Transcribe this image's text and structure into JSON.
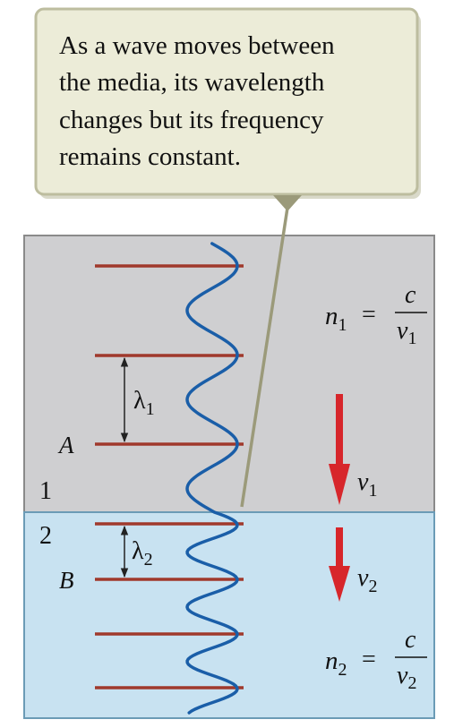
{
  "callout": {
    "lines": [
      "As a wave moves between",
      "the media, its wavelength",
      "changes but its frequency",
      "remains constant."
    ]
  },
  "medium1": {
    "number": "1",
    "n_label": "n",
    "n_sub": "1",
    "equals": "=",
    "numerator": "c",
    "denominator": "v",
    "denominator_sub": "1",
    "lambda": "λ",
    "lambda_sub": "1",
    "point": "A",
    "velocity": "v",
    "velocity_sub": "1"
  },
  "medium2": {
    "number": "2",
    "n_label": "n",
    "n_sub": "2",
    "equals": "=",
    "numerator": "c",
    "denominator": "v",
    "denominator_sub": "2",
    "lambda": "λ",
    "lambda_sub": "2",
    "point": "B",
    "velocity": "v",
    "velocity_sub": "2"
  },
  "colors": {
    "medium1_fill": "#cfcfd1",
    "medium2_fill": "#c8e2f1",
    "border": "#8a8a8a",
    "wavefront": "#a0392c",
    "wave": "#1a5ea8",
    "arrow": "#d7262b",
    "callout_fill": "#ececd8",
    "callout_border": "#a8a888"
  }
}
